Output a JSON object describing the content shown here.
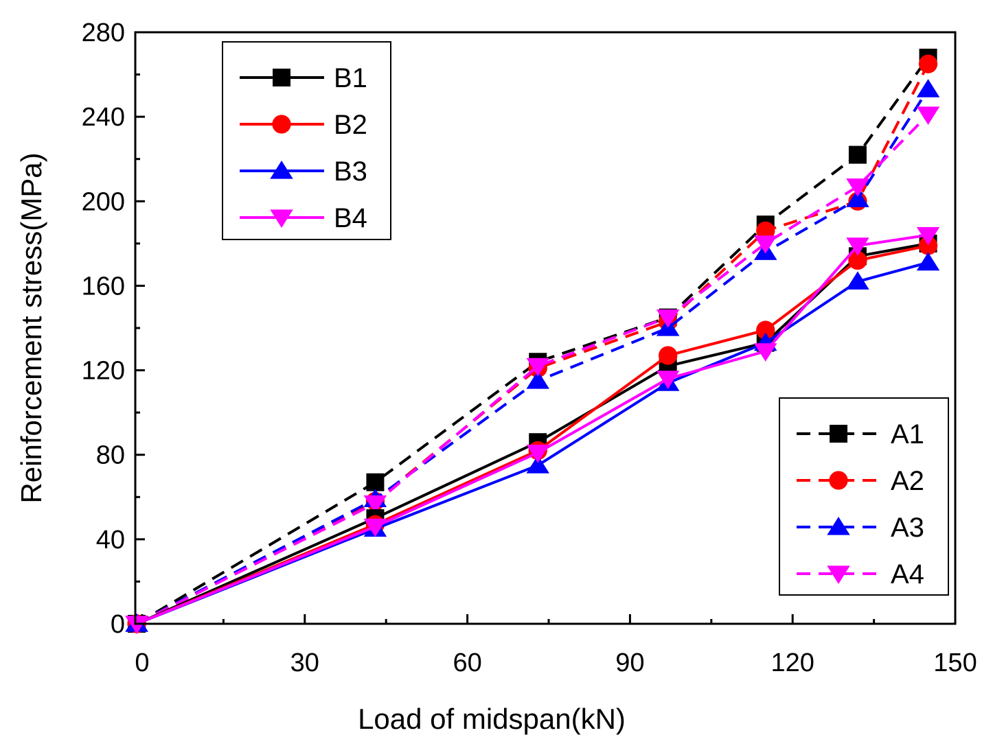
{
  "chart_data": {
    "type": "line",
    "xlabel": "Load of midspan(kN)",
    "ylabel": "Reinforcement stress(MPa)",
    "xlim": [
      0,
      150
    ],
    "ylim": [
      0,
      280
    ],
    "xticks": [
      0,
      30,
      60,
      90,
      120,
      150
    ],
    "yticks": [
      0,
      40,
      80,
      120,
      160,
      200,
      240,
      280
    ],
    "x": [
      -1,
      43,
      73,
      97,
      115,
      132,
      145
    ],
    "series": [
      {
        "name": "B1",
        "style": "solid",
        "marker": "square",
        "color": "#000000",
        "values": [
          0,
          50,
          86,
          122,
          133,
          174,
          180
        ]
      },
      {
        "name": "B2",
        "style": "solid",
        "marker": "circle",
        "color": "#ff0000",
        "values": [
          0,
          47,
          82,
          127,
          139,
          172,
          179
        ]
      },
      {
        "name": "B3",
        "style": "solid",
        "marker": "triangle-up",
        "color": "#0000ff",
        "values": [
          0,
          45,
          75,
          114,
          133,
          162,
          171
        ]
      },
      {
        "name": "B4",
        "style": "solid",
        "marker": "triangle-down",
        "color": "#ff00ff",
        "values": [
          0,
          46,
          81,
          116,
          129,
          179,
          184
        ]
      },
      {
        "name": "A1",
        "style": "dashed",
        "marker": "square",
        "color": "#000000",
        "values": [
          0,
          67,
          124,
          145,
          189,
          222,
          268
        ]
      },
      {
        "name": "A2",
        "style": "dashed",
        "marker": "circle",
        "color": "#ff0000",
        "values": [
          0,
          58,
          121,
          143,
          186,
          200,
          265
        ]
      },
      {
        "name": "A3",
        "style": "dashed",
        "marker": "triangle-up",
        "color": "#0000ff",
        "values": [
          0,
          59,
          115,
          140,
          176,
          201,
          253
        ]
      },
      {
        "name": "A4",
        "style": "dashed",
        "marker": "triangle-down",
        "color": "#ff00ff",
        "values": [
          0,
          57,
          122,
          145,
          180,
          207,
          241
        ]
      }
    ],
    "legends": [
      {
        "position": "top-left",
        "entries": [
          "B1",
          "B2",
          "B3",
          "B4"
        ]
      },
      {
        "position": "bottom-right",
        "entries": [
          "A1",
          "A2",
          "A3",
          "A4"
        ]
      }
    ]
  }
}
